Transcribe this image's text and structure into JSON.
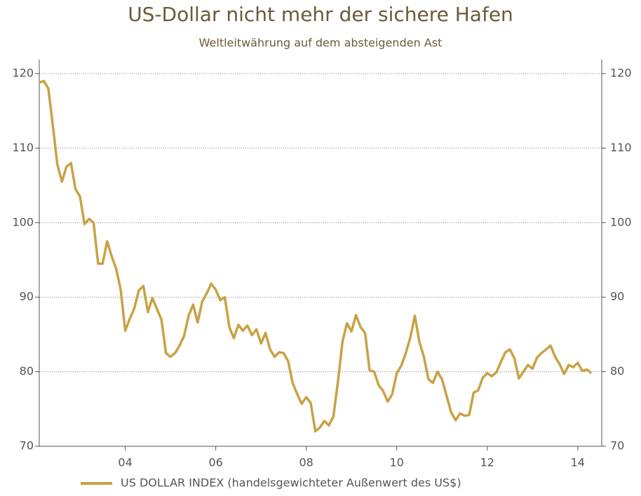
{
  "chart_data": {
    "type": "line",
    "title": "US-Dollar nicht mehr der sichere Hafen",
    "subtitle": "Weltleitwährung auf dem absteigenden Ast",
    "x": [
      2.1,
      2.2,
      2.3,
      2.4,
      2.5,
      2.6,
      2.7,
      2.8,
      2.9,
      3.0,
      3.1,
      3.2,
      3.3,
      3.4,
      3.5,
      3.6,
      3.7,
      3.8,
      3.9,
      4.0,
      4.1,
      4.2,
      4.3,
      4.4,
      4.5,
      4.6,
      4.7,
      4.8,
      4.9,
      5.0,
      5.1,
      5.2,
      5.3,
      5.4,
      5.5,
      5.6,
      5.7,
      5.8,
      5.9,
      6.0,
      6.1,
      6.2,
      6.3,
      6.4,
      6.5,
      6.6,
      6.7,
      6.8,
      6.9,
      7.0,
      7.1,
      7.2,
      7.3,
      7.4,
      7.5,
      7.6,
      7.7,
      7.8,
      7.9,
      8.0,
      8.1,
      8.2,
      8.3,
      8.4,
      8.5,
      8.6,
      8.7,
      8.8,
      8.9,
      9.0,
      9.1,
      9.2,
      9.3,
      9.4,
      9.5,
      9.6,
      9.7,
      9.8,
      9.9,
      10.0,
      10.1,
      10.2,
      10.3,
      10.4,
      10.5,
      10.6,
      10.7,
      10.8,
      10.9,
      11.0,
      11.1,
      11.2,
      11.3,
      11.4,
      11.5,
      11.6,
      11.7,
      11.8,
      11.9,
      12.0,
      12.1,
      12.2,
      12.3,
      12.4,
      12.5,
      12.6,
      12.7,
      12.8,
      12.9,
      13.0,
      13.1,
      13.2,
      13.3,
      13.4,
      13.5,
      13.6,
      13.7,
      13.8,
      13.9,
      14.0,
      14.1,
      14.2,
      14.3
    ],
    "series": [
      {
        "name": "US DOLLAR INDEX (handelsgewichteter Außenwert des US$)",
        "color": "#c9a245",
        "values": [
          118.8,
          119,
          118,
          113,
          107.8,
          105.5,
          107.5,
          108,
          104.5,
          103.5,
          99.8,
          100.5,
          100,
          94.5,
          94.5,
          97.5,
          95.5,
          93.8,
          91,
          85.5,
          87.1,
          88.5,
          90.9,
          91.5,
          88,
          89.9,
          88.4,
          87,
          82.5,
          82,
          82.5,
          83.5,
          84.8,
          87.5,
          89,
          86.6,
          89.4,
          90.5,
          91.8,
          91,
          89.6,
          90,
          86,
          84.5,
          86.3,
          85.5,
          86.2,
          84.9,
          85.7,
          83.8,
          85.2,
          83,
          82,
          82.6,
          82.5,
          81.4,
          78.5,
          77,
          75.7,
          76.6,
          75.8,
          72,
          72.5,
          73.4,
          72.8,
          74,
          78.6,
          84,
          86.5,
          85.4,
          87.6,
          86,
          85.2,
          80.2,
          80,
          78.2,
          77.4,
          76,
          77,
          79.8,
          80.8,
          82.5,
          84.6,
          87.5,
          84,
          82,
          79,
          78.5,
          80,
          79,
          76.8,
          74.6,
          73.5,
          74.4,
          74.1,
          74.2,
          77.2,
          77.5,
          79.2,
          79.8,
          79.4,
          79.9,
          81.3,
          82.6,
          83,
          81.8,
          79.1,
          80,
          80.9,
          80.4,
          81.9,
          82.5,
          83,
          83.5,
          82,
          81,
          79.7,
          80.9,
          80.6,
          81.2,
          80.1,
          80.3,
          79.8
        ]
      }
    ],
    "xlim": [
      2.1,
      14.53
    ],
    "xticks": [
      {
        "value": 4,
        "label": "04"
      },
      {
        "value": 6,
        "label": "06"
      },
      {
        "value": 8,
        "label": "08"
      },
      {
        "value": 10,
        "label": "10"
      },
      {
        "value": 12,
        "label": "12"
      },
      {
        "value": 14,
        "label": "14"
      }
    ],
    "ylim": [
      70,
      120
    ],
    "yticks": [
      70,
      80,
      90,
      100,
      110,
      120
    ],
    "grid": true
  }
}
